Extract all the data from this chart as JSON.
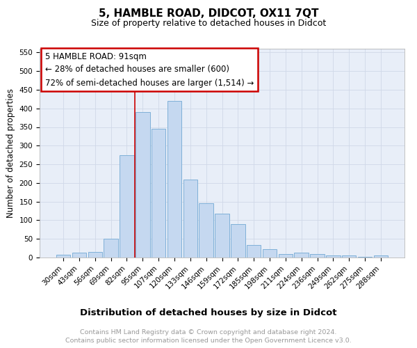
{
  "title": "5, HAMBLE ROAD, DIDCOT, OX11 7QT",
  "subtitle": "Size of property relative to detached houses in Didcot",
  "xlabel": "Distribution of detached houses by size in Didcot",
  "ylabel": "Number of detached properties",
  "categories": [
    "30sqm",
    "43sqm",
    "56sqm",
    "69sqm",
    "82sqm",
    "95sqm",
    "107sqm",
    "120sqm",
    "133sqm",
    "146sqm",
    "159sqm",
    "172sqm",
    "185sqm",
    "198sqm",
    "211sqm",
    "224sqm",
    "236sqm",
    "249sqm",
    "262sqm",
    "275sqm",
    "288sqm"
  ],
  "values": [
    7,
    13,
    15,
    50,
    275,
    390,
    345,
    420,
    210,
    145,
    117,
    90,
    33,
    22,
    10,
    13,
    10,
    6,
    5,
    1,
    5
  ],
  "bar_color": "#c5d8f0",
  "bar_edge_color": "#7fb0d8",
  "vline_x": 5.0,
  "vline_color": "#cc0000",
  "annotation_title": "5 HAMBLE ROAD: 91sqm",
  "annotation_line1": "← 28% of detached houses are smaller (600)",
  "annotation_line2": "72% of semi-detached houses are larger (1,514) →",
  "annotation_box_color": "#ffffff",
  "annotation_box_edge": "#cc0000",
  "ylim": [
    0,
    560
  ],
  "yticks": [
    0,
    50,
    100,
    150,
    200,
    250,
    300,
    350,
    400,
    450,
    500,
    550
  ],
  "grid_color": "#d0d8e8",
  "background_color": "#e8eef8",
  "footer_line1": "Contains HM Land Registry data © Crown copyright and database right 2024.",
  "footer_line2": "Contains public sector information licensed under the Open Government Licence v3.0.",
  "footer_color": "#999999",
  "title_fontsize": 11,
  "subtitle_fontsize": 9,
  "xlabel_fontsize": 9.5,
  "ylabel_fontsize": 8.5,
  "tick_fontsize": 7.5,
  "annotation_fontsize": 8.5,
  "footer_fontsize": 6.8
}
